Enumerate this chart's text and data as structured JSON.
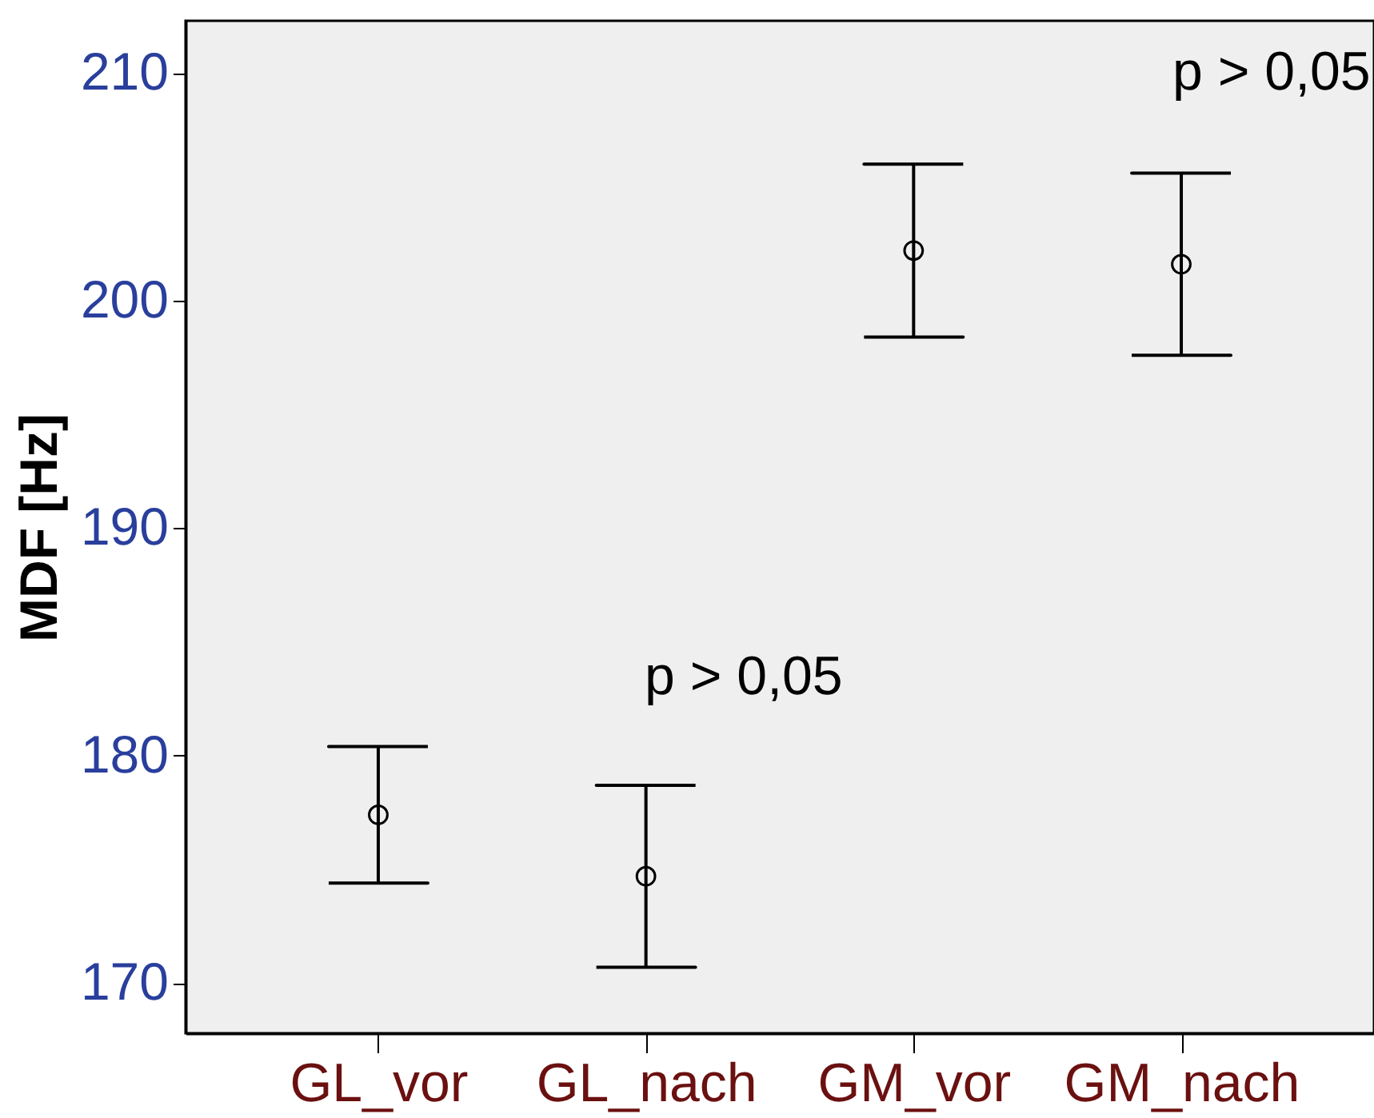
{
  "chart_data": {
    "type": "scatter",
    "ylabel": "MDF [Hz]",
    "categories": [
      "GL_vor",
      "GL_nach",
      "GM_vor",
      "GM_nach"
    ],
    "values": [
      177.4,
      174.7,
      202.2,
      201.6
    ],
    "errors": [
      3.0,
      4.0,
      3.8,
      4.0
    ],
    "color": "#000000",
    "marker": "circle",
    "ylim": [
      167.8,
      212.3
    ],
    "yticks": [
      170,
      180,
      190,
      200,
      210
    ],
    "annotations": [
      "p > 0,05",
      "p > 0,05"
    ]
  }
}
